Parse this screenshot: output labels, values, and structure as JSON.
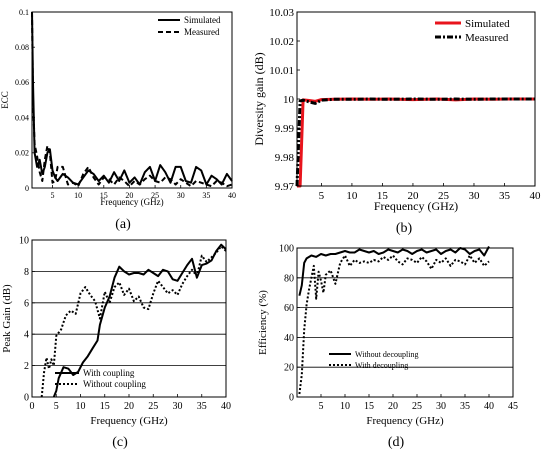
{
  "chart_data": [
    {
      "panel_label": "(a)",
      "type": "line",
      "xlabel": "Frequency (GHz)",
      "ylabel": "ECC",
      "xlim": [
        1,
        40
      ],
      "ylim": [
        0,
        0.1
      ],
      "x_ticks": [
        5,
        10,
        15,
        20,
        25,
        30,
        35,
        40
      ],
      "y_ticks": [
        0,
        0.02,
        0.04,
        0.06,
        0.08,
        0.1
      ],
      "y_tick_labels": [
        "0",
        "0.02",
        "0.04",
        "0.06",
        "0.08",
        "0.1"
      ],
      "grid": false,
      "legend_position": "top-right",
      "series": [
        {
          "name": "Simulated",
          "style": "solid",
          "color": "#000000",
          "x": [
            1.0,
            1.2,
            1.5,
            2.0,
            2.5,
            3.0,
            3.5,
            4.0,
            4.5,
            5.0,
            5.5,
            6.0,
            7.0,
            8.0,
            9.0,
            10.0,
            11.0,
            12.0,
            13.0,
            14.0,
            15.0,
            16.0,
            17.0,
            18.0,
            19.0,
            20.0,
            21.0,
            22.0,
            23.0,
            24.0,
            25.0,
            26.0,
            27.0,
            28.0,
            29.0,
            30.0,
            31.0,
            32.0,
            33.0,
            34.0,
            35.0,
            36.0,
            37.0,
            38.0,
            39.0,
            40.0
          ],
          "y": [
            0.1,
            0.06,
            0.02,
            0.012,
            0.016,
            0.008,
            0.012,
            0.02,
            0.022,
            0.01,
            0.006,
            0.004,
            0.008,
            0.006,
            0.003,
            0.002,
            0.006,
            0.01,
            0.008,
            0.004,
            0.007,
            0.003,
            0.009,
            0.004,
            0.01,
            0.003,
            0.006,
            0.002,
            0.009,
            0.012,
            0.004,
            0.013,
            0.009,
            0.003,
            0.012,
            0.012,
            0.004,
            0.003,
            0.012,
            0.01,
            0.002,
            0.007,
            0.005,
            0.002,
            0.008,
            0.004
          ]
        },
        {
          "name": "Measured",
          "style": "dashed",
          "color": "#000000",
          "x": [
            1.0,
            1.2,
            1.5,
            2.0,
            2.5,
            3.0,
            3.5,
            4.0,
            4.5,
            5.0,
            5.5,
            6.0,
            7.0,
            8.0,
            9.0,
            10.0,
            11.0,
            12.0,
            13.0,
            14.0,
            15.0,
            16.0,
            17.0,
            18.0,
            19.0,
            20.0,
            21.0,
            22.0,
            23.0,
            24.0,
            25.0,
            26.0,
            27.0,
            28.0,
            29.0,
            30.0,
            31.0,
            32.0,
            33.0,
            34.0,
            35.0,
            36.0,
            37.0,
            38.0,
            39.0,
            40.0
          ],
          "y": [
            0.1,
            0.05,
            0.025,
            0.018,
            0.009,
            0.004,
            0.016,
            0.024,
            0.02,
            0.003,
            0.004,
            0.012,
            0.012,
            0.002,
            0.003,
            0.001,
            0.008,
            0.012,
            0.006,
            0.002,
            0.006,
            0.005,
            0.002,
            0.006,
            0.004,
            0.001,
            0.004,
            0.002,
            0.005,
            0.007,
            0.004,
            0.003,
            0.006,
            0.005,
            0.002,
            0.005,
            0.003,
            0.001,
            0.004,
            0.003,
            0.002,
            0.001,
            0.004,
            0.003,
            0.001,
            0.002
          ]
        }
      ]
    },
    {
      "panel_label": "(b)",
      "type": "line",
      "xlabel": "Frequency (GHz)",
      "ylabel": "Diversity gain (dB)",
      "xlim": [
        1,
        40
      ],
      "ylim": [
        9.97,
        10.03
      ],
      "x_ticks": [
        5,
        10,
        15,
        20,
        25,
        30,
        35,
        40
      ],
      "y_ticks": [
        9.97,
        9.98,
        9.99,
        10.0,
        10.01,
        10.02,
        10.03
      ],
      "y_tick_labels": [
        "9.97",
        "9.98",
        "9.99",
        "10",
        "10.01",
        "10.02",
        "10.03"
      ],
      "grid": false,
      "legend_position": "top-right",
      "series": [
        {
          "name": "Simulated",
          "style": "solid",
          "color": "#e8141c",
          "x": [
            1.0,
            1.5,
            2.0,
            3.0,
            4.0,
            5.0,
            7.0,
            10.0,
            13.0,
            16.0,
            20.0,
            24.0,
            27.0,
            30.0,
            33.0,
            36.0,
            40.0
          ],
          "y": [
            9.97,
            9.97,
            9.9997,
            9.9995,
            9.9992,
            9.9998,
            9.9999,
            10.0,
            9.9999,
            10.0,
            9.9998,
            10.0,
            9.9997,
            10.0,
            9.9999,
            10.0,
            10.0
          ]
        },
        {
          "name": "Measured",
          "style": "dash-dot",
          "color": "#000000",
          "x": [
            1.0,
            1.5,
            2.0,
            3.0,
            4.0,
            5.0,
            7.0,
            10.0,
            13.0,
            16.0,
            20.0,
            24.0,
            27.0,
            30.0,
            33.0,
            36.0,
            40.0
          ],
          "y": [
            9.97,
            9.9993,
            9.9996,
            9.999,
            9.9985,
            9.9996,
            9.9999,
            9.9999,
            10.0,
            9.9999,
            10.0,
            9.9999,
            10.0,
            9.9999,
            10.0,
            10.0,
            10.0
          ]
        }
      ]
    },
    {
      "panel_label": "(c)",
      "type": "line",
      "xlabel": "Frequency (GHz)",
      "ylabel": "Peak Gain (dB)",
      "xlim": [
        0,
        40
      ],
      "ylim": [
        0,
        10
      ],
      "x_ticks": [
        0,
        5,
        10,
        15,
        20,
        25,
        30,
        35,
        40
      ],
      "y_ticks": [
        0,
        2,
        4,
        6,
        8,
        10
      ],
      "grid": true,
      "legend_position": "bottom-left",
      "series": [
        {
          "name": "With coupling",
          "style": "solid",
          "color": "#000000",
          "x": [
            4.5,
            5.0,
            5.5,
            6.5,
            7.5,
            8.5,
            9.5,
            10.5,
            11.5,
            12.5,
            13.5,
            14.0,
            15.0,
            16.0,
            17.0,
            18.0,
            19.0,
            20.0,
            21.0,
            22.0,
            23.0,
            24.0,
            25.0,
            26.0,
            27.0,
            28.0,
            29.0,
            30.0,
            31.0,
            32.0,
            33.0,
            34.0,
            35.0,
            36.0,
            37.0,
            38.0,
            39.0,
            40.0
          ],
          "y": [
            0.0,
            0.4,
            1.2,
            1.9,
            1.8,
            1.4,
            1.6,
            2.2,
            2.6,
            3.1,
            3.6,
            4.6,
            5.7,
            6.4,
            7.6,
            8.3,
            8.0,
            7.8,
            7.9,
            7.9,
            7.8,
            8.1,
            7.9,
            7.7,
            8.1,
            8.0,
            7.5,
            7.4,
            7.9,
            8.4,
            8.8,
            7.6,
            8.4,
            8.5,
            8.7,
            9.3,
            9.7,
            9.4
          ]
        },
        {
          "name": "Without coupling",
          "style": "dotted",
          "color": "#000000",
          "x": [
            2.0,
            2.5,
            3.0,
            3.5,
            4.0,
            4.5,
            5.0,
            6.0,
            7.0,
            8.0,
            9.0,
            10.0,
            11.0,
            12.0,
            13.0,
            14.0,
            15.0,
            16.0,
            17.0,
            18.0,
            19.0,
            20.0,
            21.0,
            22.0,
            23.0,
            24.0,
            25.0,
            26.0,
            27.0,
            28.0,
            29.0,
            30.0,
            31.0,
            32.0,
            33.0,
            34.0,
            35.0,
            36.0,
            37.0,
            38.0,
            39.0,
            40.0
          ],
          "y": [
            0.0,
            1.6,
            2.5,
            1.8,
            2.4,
            2.0,
            3.9,
            4.3,
            5.2,
            5.5,
            5.3,
            6.6,
            7.0,
            6.5,
            6.1,
            5.0,
            6.7,
            6.0,
            7.0,
            7.3,
            6.5,
            6.9,
            6.1,
            6.4,
            5.7,
            5.6,
            6.6,
            7.4,
            7.0,
            6.6,
            6.8,
            6.5,
            7.2,
            7.7,
            8.1,
            7.7,
            9.0,
            8.6,
            8.9,
            9.2,
            9.6,
            9.3
          ]
        }
      ]
    },
    {
      "panel_label": "(d)",
      "type": "line",
      "xlabel": "Frequency (GHz)",
      "ylabel": "Efficiency (%)",
      "xlim": [
        0,
        45
      ],
      "ylim": [
        0,
        100
      ],
      "x_ticks": [
        5,
        10,
        15,
        20,
        25,
        30,
        35,
        40,
        45
      ],
      "y_ticks": [
        0,
        20,
        40,
        60,
        80,
        100
      ],
      "grid": true,
      "legend_position": "bottom-left",
      "series": [
        {
          "name": "Without decoupling",
          "style": "solid",
          "color": "#000000",
          "x": [
            0.5,
            1.0,
            1.5,
            2.0,
            3.0,
            4.0,
            5.0,
            6.0,
            7.0,
            8.0,
            9.0,
            10.0,
            11.0,
            12.0,
            13.0,
            14.0,
            15.0,
            16.0,
            17.0,
            18.0,
            19.0,
            20.0,
            21.0,
            22.0,
            23.0,
            24.0,
            25.0,
            26.0,
            27.0,
            28.0,
            29.0,
            30.0,
            31.0,
            32.0,
            33.0,
            34.0,
            35.0,
            36.0,
            37.0,
            38.0,
            39.0,
            40.0
          ],
          "y": [
            68,
            75,
            90,
            93,
            95,
            94,
            96,
            95,
            96,
            96,
            97,
            98,
            97,
            97,
            99,
            98,
            97,
            98,
            96,
            97,
            99,
            98,
            97,
            99,
            98,
            96,
            98,
            99,
            97,
            98,
            99,
            96,
            98,
            99,
            97,
            100,
            99,
            96,
            98,
            99,
            95,
            101
          ]
        },
        {
          "name": "With decoupling",
          "style": "dotted",
          "color": "#000000",
          "x": [
            0.5,
            1.0,
            1.5,
            2.0,
            2.5,
            3.0,
            3.5,
            4.0,
            4.5,
            5.0,
            5.5,
            6.0,
            7.0,
            8.0,
            9.0,
            10.0,
            11.0,
            12.0,
            13.0,
            14.0,
            15.0,
            16.0,
            17.0,
            18.0,
            19.0,
            20.0,
            21.0,
            22.0,
            23.0,
            24.0,
            25.0,
            26.0,
            27.0,
            28.0,
            29.0,
            30.0,
            31.0,
            32.0,
            33.0,
            34.0,
            35.0,
            36.0,
            37.0,
            38.0,
            39.0,
            40.0
          ],
          "y": [
            2,
            15,
            45,
            62,
            72,
            80,
            88,
            66,
            84,
            78,
            70,
            82,
            85,
            76,
            90,
            95,
            88,
            92,
            90,
            91,
            90,
            92,
            91,
            94,
            92,
            95,
            91,
            89,
            93,
            92,
            90,
            94,
            91,
            86,
            92,
            90,
            93,
            88,
            92,
            91,
            89,
            95,
            90,
            93,
            88,
            91
          ]
        }
      ]
    }
  ]
}
